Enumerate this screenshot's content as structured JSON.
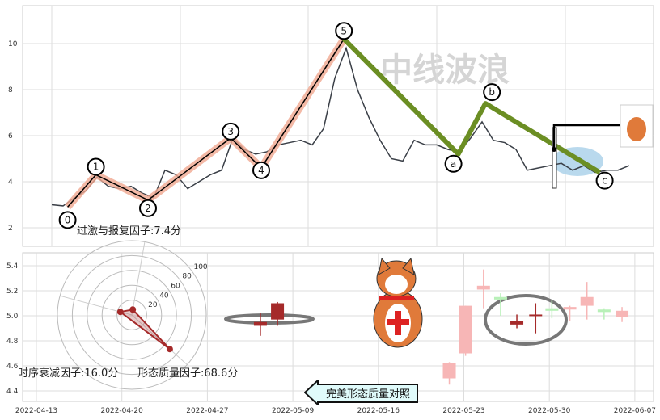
{
  "chart_data": [
    {
      "type": "line",
      "panel": "top",
      "y_ticks": [
        "2",
        "4",
        "6",
        "8",
        "10"
      ],
      "ylim": [
        1,
        11.7
      ],
      "grid": true,
      "watermark": "中线波浪",
      "price_values": [
        3.0,
        2.95,
        3.3,
        3.6,
        4.2,
        3.8,
        3.7,
        3.8,
        3.5,
        3.3,
        4.5,
        4.3,
        3.7,
        4.0,
        4.3,
        4.5,
        5.9,
        5.4,
        5.2,
        5.3,
        5.6,
        5.7,
        5.8,
        5.6,
        6.3,
        8.5,
        9.8,
        8.0,
        6.8,
        5.8,
        5.0,
        4.9,
        5.8,
        5.6,
        5.6,
        5.4,
        5.3,
        5.9,
        6.6,
        5.8,
        5.7,
        5.4,
        4.5,
        4.6,
        4.7,
        4.8,
        4.5,
        4.7,
        4.4,
        4.5,
        4.5,
        4.7
      ],
      "impulse_wave": [
        {
          "label": "0",
          "index": 1.4,
          "value": 2.9
        },
        {
          "label": "1",
          "index": 3.9,
          "value": 4.3
        },
        {
          "label": "2",
          "index": 8.5,
          "value": 3.2
        },
        {
          "label": "3",
          "index": 15.8,
          "value": 5.9
        },
        {
          "label": "4",
          "index": 18.5,
          "value": 4.6
        },
        {
          "label": "5",
          "index": 25.8,
          "value": 10.2
        }
      ],
      "corrective_wave": [
        {
          "label": "5",
          "index": 25.8,
          "value": 10.2
        },
        {
          "label": "a",
          "index": 35.9,
          "value": 5.2
        },
        {
          "label": "b",
          "index": 38.3,
          "value": 7.4
        },
        {
          "label": "c",
          "index": 48.4,
          "value": 4.4
        }
      ],
      "impulse_color": "#f0a890",
      "corrective_color": "#6b8e23",
      "highlight_color": "#a8cfe8",
      "factor_text": "过激与报复因子:7.4分"
    },
    {
      "type": "candlestick",
      "panel": "bottom",
      "x_ticks": [
        "2022-04-13",
        "2022-04-20",
        "2022-04-27",
        "2022-05-09",
        "2022-05-16",
        "2022-05-23",
        "2022-05-30",
        "2022-06-07"
      ],
      "y_ticks": [
        "4.4",
        "4.6",
        "4.8",
        "5.0",
        "5.2",
        "5.4"
      ],
      "ylim": [
        4.3,
        5.5
      ],
      "grid": true,
      "candles": [
        {
          "x": 2.62,
          "o": 4.95,
          "c": 4.92,
          "h": 5.02,
          "l": 4.84,
          "color": "#a52a2a"
        },
        {
          "x": 2.82,
          "o": 4.97,
          "c": 5.1,
          "h": 5.11,
          "l": 4.92,
          "color": "#a52a2a"
        },
        {
          "x": 4.83,
          "o": 4.62,
          "c": 4.5,
          "h": 4.63,
          "l": 4.45,
          "color": "#f7b6b6"
        },
        {
          "x": 5.02,
          "o": 4.7,
          "c": 5.08,
          "h": 5.08,
          "l": 4.68,
          "color": "#f7b6b6"
        },
        {
          "x": 5.23,
          "o": 5.21,
          "c": 5.24,
          "h": 5.37,
          "l": 5.06,
          "color": "#f7b6b6"
        },
        {
          "x": 5.43,
          "o": 5.13,
          "c": 5.15,
          "h": 5.18,
          "l": 5.0,
          "color": "#b8f0b8"
        },
        {
          "x": 5.62,
          "o": 4.96,
          "c": 4.93,
          "h": 5.01,
          "l": 4.9,
          "color": "#a52a2a"
        },
        {
          "x": 5.84,
          "o": 5.0,
          "c": 5.01,
          "h": 5.1,
          "l": 4.86,
          "color": "#a52a2a"
        },
        {
          "x": 6.03,
          "o": 5.04,
          "c": 5.06,
          "h": 5.12,
          "l": 4.98,
          "color": "#b8f0b8"
        },
        {
          "x": 6.24,
          "o": 5.05,
          "c": 5.07,
          "h": 5.08,
          "l": 4.96,
          "color": "#f7b6b6"
        },
        {
          "x": 6.44,
          "o": 5.08,
          "c": 5.15,
          "h": 5.27,
          "l": 4.97,
          "color": "#f7b6b6"
        },
        {
          "x": 6.64,
          "o": 5.03,
          "c": 5.05,
          "h": 5.06,
          "l": 4.97,
          "color": "#b8f0b8"
        },
        {
          "x": 6.85,
          "o": 4.99,
          "c": 5.04,
          "h": 5.07,
          "l": 4.95,
          "color": "#f7b6b6"
        }
      ]
    },
    {
      "type": "radar",
      "ring_labels": [
        "20",
        "40",
        "60",
        "80",
        "100"
      ],
      "rmax": 100,
      "values": [
        7.4,
        16.0,
        68.6
      ],
      "color": "#a52a2a"
    }
  ],
  "factors": {
    "overreaction": "过激与报复因子:7.4分",
    "time_decay": "时序衰减因子:16.0分",
    "pattern_quality": "形态质量因子:68.6分"
  },
  "compare_button": "完美形态质量对照"
}
